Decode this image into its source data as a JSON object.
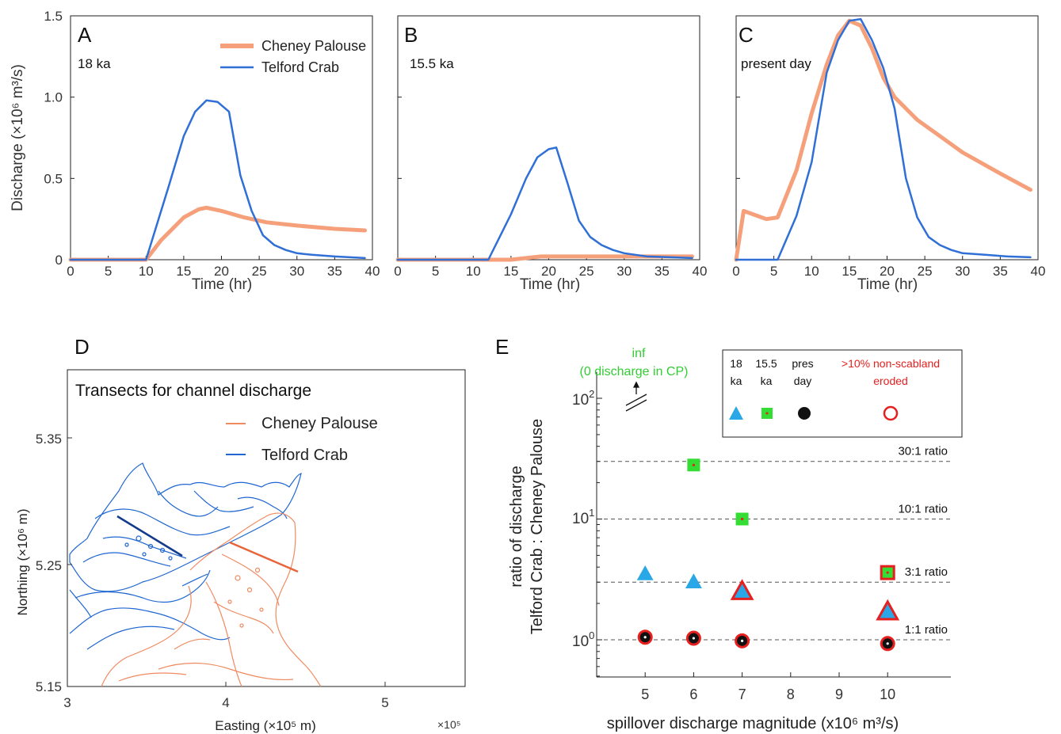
{
  "colors": {
    "cheney": "#f5a07a",
    "telford": "#2f6fd6",
    "mapCheney": "#f08a60",
    "mapTelford": "#1f66d1",
    "green": "#33dd33",
    "cyan": "#2aa7e6",
    "red": "#e61f1f"
  },
  "panelA": {
    "label": "A",
    "sublabel": "18 ka",
    "ylabel": "Discharge (×10⁶ m³/s)",
    "yticks": [
      "0",
      "0.5",
      "1.0",
      "1.5"
    ],
    "legend": {
      "cheney": "Cheney Palouse",
      "telford": "Telford Crab"
    }
  },
  "panelB": {
    "label": "B",
    "sublabel": "15.5 ka"
  },
  "panelC": {
    "label": "C",
    "sublabel": "present day"
  },
  "xlabel": "Time (hr)",
  "xticks": [
    "0",
    "5",
    "10",
    "15",
    "20",
    "25",
    "30",
    "35",
    "40"
  ],
  "chart_data": [
    {
      "type": "line",
      "panel": "A",
      "xlim": [
        0,
        40
      ],
      "ylim": [
        0,
        1.5
      ],
      "series": [
        {
          "name": "Cheney Palouse",
          "x": [
            0,
            10,
            12,
            15,
            17,
            18,
            20,
            23,
            26,
            30,
            35,
            39
          ],
          "y": [
            0,
            0,
            0.12,
            0.26,
            0.31,
            0.32,
            0.3,
            0.26,
            0.23,
            0.21,
            0.19,
            0.18
          ]
        },
        {
          "name": "Telford Crab",
          "x": [
            0,
            10,
            13,
            15,
            16.5,
            18,
            19.5,
            21,
            22.5,
            24,
            25.5,
            27,
            28.5,
            30,
            32,
            35,
            39
          ],
          "y": [
            0,
            0,
            0.45,
            0.76,
            0.91,
            0.98,
            0.97,
            0.91,
            0.52,
            0.3,
            0.15,
            0.09,
            0.06,
            0.04,
            0.03,
            0.02,
            0.01
          ]
        }
      ]
    },
    {
      "type": "line",
      "panel": "B",
      "xlim": [
        0,
        40
      ],
      "ylim": [
        0,
        1.5
      ],
      "series": [
        {
          "name": "Cheney Palouse",
          "x": [
            0,
            15,
            17,
            19,
            22,
            26,
            30,
            35,
            39
          ],
          "y": [
            0,
            0,
            0.01,
            0.02,
            0.02,
            0.02,
            0.02,
            0.02,
            0.02
          ]
        },
        {
          "name": "Telford Crab",
          "x": [
            0,
            12,
            15,
            17,
            18.5,
            20,
            21,
            22.5,
            24,
            25.5,
            27,
            28.5,
            30,
            33,
            36,
            39
          ],
          "y": [
            0,
            0,
            0.28,
            0.5,
            0.63,
            0.68,
            0.69,
            0.47,
            0.24,
            0.14,
            0.09,
            0.06,
            0.04,
            0.02,
            0.015,
            0.01
          ]
        }
      ]
    },
    {
      "type": "line",
      "panel": "C",
      "xlim": [
        0,
        40
      ],
      "ylim": [
        0,
        1.5
      ],
      "series": [
        {
          "name": "Cheney Palouse",
          "x": [
            0,
            1,
            4,
            5.5,
            8,
            10,
            12,
            13.5,
            15,
            16.5,
            18,
            19.5,
            21,
            24,
            27,
            30,
            35,
            39
          ],
          "y": [
            0,
            0.3,
            0.25,
            0.26,
            0.55,
            0.9,
            1.2,
            1.38,
            1.47,
            1.44,
            1.3,
            1.12,
            1.0,
            0.86,
            0.76,
            0.66,
            0.53,
            0.43
          ]
        },
        {
          "name": "Telford Crab",
          "x": [
            0,
            5.5,
            8,
            10,
            12,
            13.5,
            15,
            16.5,
            18,
            19.5,
            21,
            22.5,
            24,
            25.5,
            27,
            28.5,
            30,
            33,
            36,
            39
          ],
          "y": [
            0,
            0,
            0.27,
            0.6,
            1.15,
            1.35,
            1.47,
            1.48,
            1.35,
            1.18,
            0.93,
            0.5,
            0.26,
            0.14,
            0.09,
            0.06,
            0.04,
            0.03,
            0.02,
            0.015
          ]
        }
      ]
    },
    {
      "type": "scatter",
      "panel": "E",
      "xlabel": "spillover discharge magnitude (x10⁶ m³/s)",
      "ylabel1": "ratio of discharge",
      "ylabel2": "Telford Crab : Cheney Palouse",
      "xlim": [
        4,
        11
      ],
      "ylim_log": [
        0.5,
        100
      ],
      "xticks": [
        5,
        6,
        7,
        8,
        9,
        10
      ],
      "series": [
        {
          "name": "18 ka",
          "marker": "triangle",
          "points": [
            [
              5,
              3.5,
              false
            ],
            [
              6,
              3.0,
              false
            ],
            [
              7,
              2.5,
              true
            ],
            [
              10,
              1.7,
              true
            ]
          ]
        },
        {
          "name": "15.5 ka",
          "marker": "square",
          "points": [
            [
              6,
              28,
              false
            ],
            [
              7,
              10,
              false
            ],
            [
              10,
              3.6,
              true
            ]
          ]
        },
        {
          "name": "pres day",
          "marker": "circle",
          "points": [
            [
              5,
              1.05,
              true
            ],
            [
              6,
              1.03,
              true
            ],
            [
              7,
              0.98,
              true
            ],
            [
              10,
              0.93,
              true
            ]
          ]
        }
      ],
      "ratio_lines": [
        {
          "value": 30,
          "label": "30:1 ratio"
        },
        {
          "value": 10,
          "label": "10:1 ratio"
        },
        {
          "value": 3,
          "label": "3:1 ratio"
        },
        {
          "value": 1,
          "label": "1:1 ratio"
        }
      ]
    }
  ],
  "panelD": {
    "label": "D",
    "title": "Transects for channel discharge",
    "legend": {
      "cheney": "Cheney Palouse",
      "telford": "Telford Crab"
    },
    "ylabel": "Northing (×10⁶ m)",
    "xlabel": "Easting (×10⁵ m)",
    "xticks": [
      "3",
      "4",
      "5"
    ],
    "yticks": [
      "5.35",
      "5.25",
      "5.15"
    ],
    "xexp": "×10⁵"
  },
  "panelE": {
    "label": "E",
    "inf_label": "inf",
    "inf_note": "(0 discharge in CP)",
    "legend_cols": [
      {
        "line1": "18",
        "line2": "ka"
      },
      {
        "line1": "15.5",
        "line2": "ka"
      },
      {
        "line1": "pres",
        "line2": "day"
      }
    ],
    "legend_red_line1": ">10% non-scabland",
    "legend_red_line2": "eroded",
    "yticks": [
      {
        "base": "10",
        "exp": "2"
      },
      {
        "base": "10",
        "exp": "1"
      },
      {
        "base": "10",
        "exp": "0"
      }
    ]
  }
}
